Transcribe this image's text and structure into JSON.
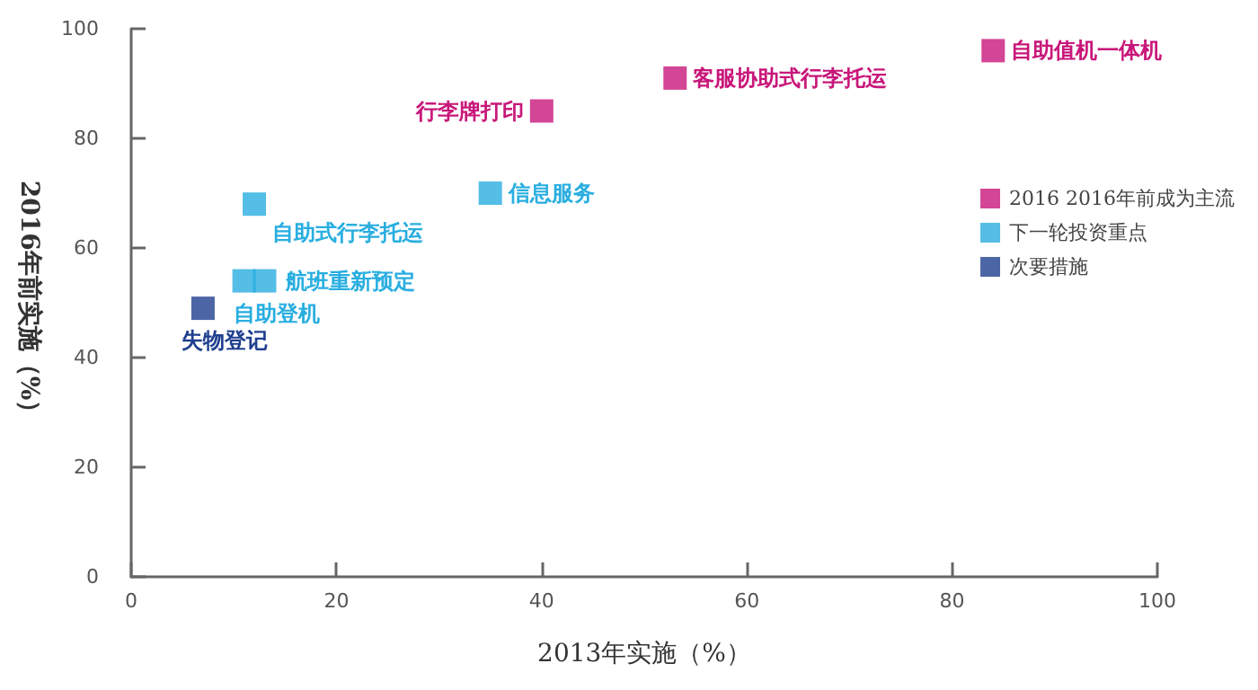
{
  "chart_data": {
    "type": "scatter",
    "xlabel": "2013年实施（%）",
    "ylabel": "2016年前实施（%）",
    "xlim": [
      0,
      100
    ],
    "xticks": [
      0,
      20,
      40,
      60,
      80,
      100
    ],
    "ylim": [
      0,
      100
    ],
    "yticks": [
      0,
      20,
      40,
      60,
      80,
      100
    ],
    "grid": false,
    "legend": "right",
    "marker": "square",
    "series": [
      {
        "name": "2016 2016年前成为主流",
        "color": "#c8177a",
        "x": [
          84,
          53,
          40
        ],
        "values": [
          96,
          91,
          85
        ]
      },
      {
        "name": "下一轮投资重点",
        "color": "#29aee0",
        "x": [
          35,
          12,
          13,
          11
        ],
        "values": [
          70,
          68,
          54,
          54
        ]
      },
      {
        "name": "次要措施",
        "color": "#1f3f8f",
        "x": [
          7
        ],
        "values": [
          49
        ]
      }
    ],
    "annotations": [
      {
        "text": "自助值机一体机",
        "x": 84,
        "y": 96
      },
      {
        "text": "客服协助式行李托运",
        "x": 53,
        "y": 91
      },
      {
        "text": "行李牌打印",
        "x": 40,
        "y": 85
      },
      {
        "text": "信息服务",
        "x": 35,
        "y": 70
      },
      {
        "text": "自助式行李托运",
        "x": 12,
        "y": 68
      },
      {
        "text": "航班重新预定",
        "x": 13,
        "y": 54
      },
      {
        "text": "自助登机",
        "x": 11,
        "y": 54
      },
      {
        "text": "失物登记",
        "x": 7,
        "y": 49
      }
    ]
  }
}
